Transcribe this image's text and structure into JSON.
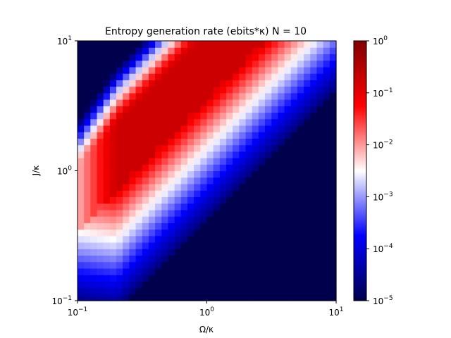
{
  "chart_data": {
    "type": "heatmap",
    "title": "Entropy generation rate (ebits*κ) N = 10",
    "xlabel": "Ω/κ",
    "ylabel": "J/κ",
    "x_scale": "log",
    "y_scale": "log",
    "xlim": [
      0.1,
      10
    ],
    "ylim": [
      0.1,
      10
    ],
    "x_ticks": [
      {
        "base": "10",
        "exp": "−1",
        "value": 0.1
      },
      {
        "base": "10",
        "exp": "0",
        "value": 1
      },
      {
        "base": "10",
        "exp": "1",
        "value": 10
      }
    ],
    "y_ticks": [
      {
        "base": "10",
        "exp": "−1",
        "value": 0.1
      },
      {
        "base": "10",
        "exp": "0",
        "value": 1
      },
      {
        "base": "10",
        "exp": "1",
        "value": 10
      }
    ],
    "grid_resolution": [
      40,
      40
    ],
    "colormap": "seismic",
    "colorbar": {
      "scale": "log",
      "range": [
        1e-05,
        1
      ],
      "ticks": [
        {
          "base": "10",
          "exp": "0",
          "value": 1
        },
        {
          "base": "10",
          "exp": "−1",
          "value": 0.1
        },
        {
          "base": "10",
          "exp": "−2",
          "value": 0.01
        },
        {
          "base": "10",
          "exp": "−3",
          "value": 0.001
        },
        {
          "base": "10",
          "exp": "−4",
          "value": 0.0001
        },
        {
          "base": "10",
          "exp": "−5",
          "value": 1e-05
        }
      ]
    },
    "model": {
      "ridge_offset": 0.55,
      "ridge_width": 0.27,
      "ridge_log_peak": 1.1,
      "ridge_ceiling": -0.75,
      "lower_flank_slope": 4.0,
      "upper_flank_slope": 1.45,
      "small_omega_decay": 4.6,
      "floor_log": -5
    }
  }
}
